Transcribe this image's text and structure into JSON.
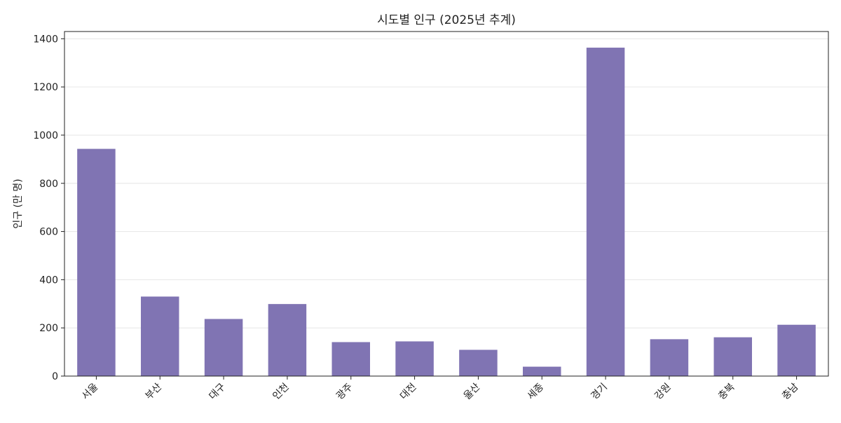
{
  "chart_data": {
    "type": "bar",
    "title": "시도별 인구 (2025년 추계)",
    "xlabel": "",
    "ylabel": "인구 (만 명)",
    "categories": [
      "서울",
      "부산",
      "대구",
      "인천",
      "광주",
      "대전",
      "울산",
      "세종",
      "경기",
      "강원",
      "충북",
      "충남"
    ],
    "values": [
      943,
      330,
      237,
      299,
      141,
      144,
      109,
      39,
      1363,
      153,
      161,
      213
    ],
    "ylim": [
      0,
      1430
    ],
    "yticks": [
      0,
      200,
      400,
      600,
      800,
      1000,
      1200,
      1400
    ],
    "grid": true,
    "bar_color": "#8074b3"
  }
}
